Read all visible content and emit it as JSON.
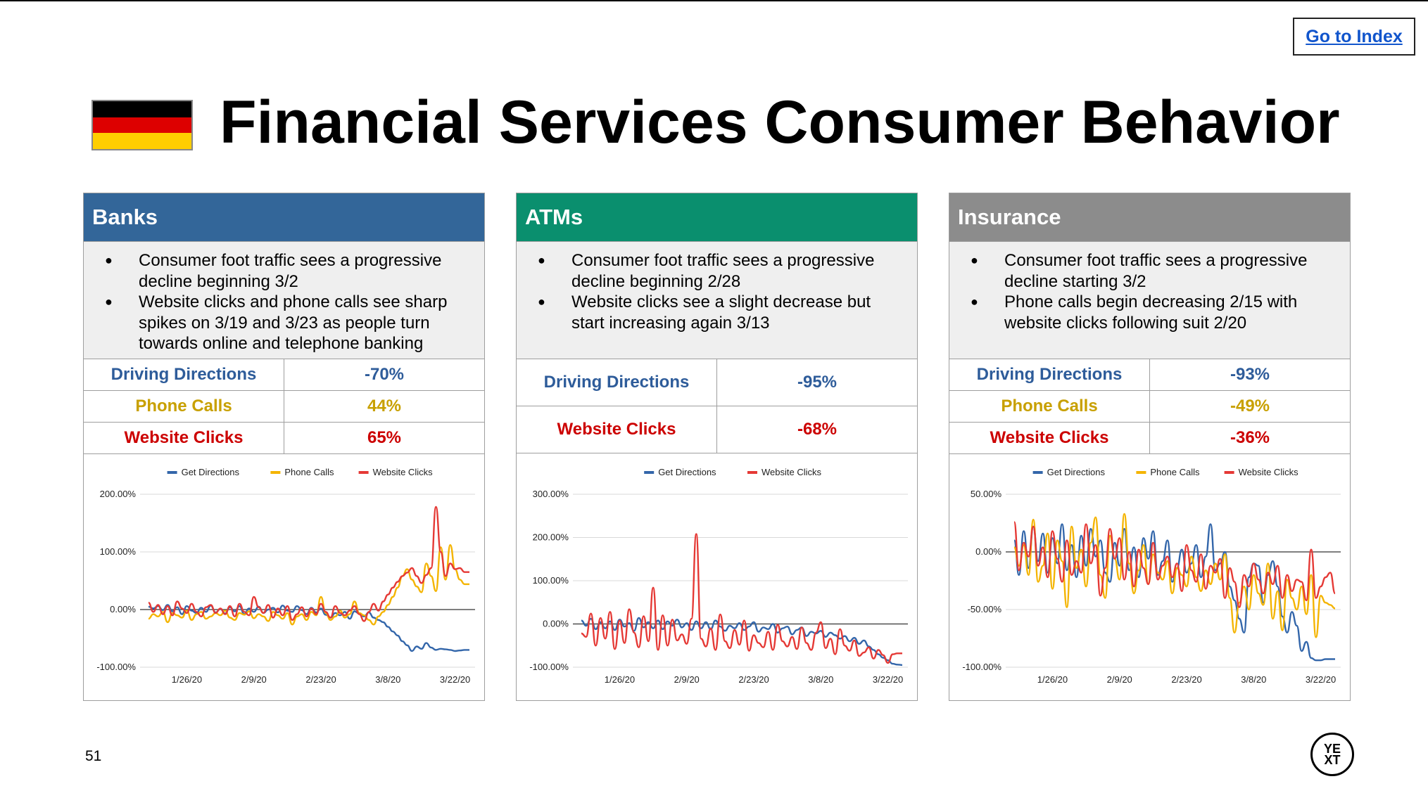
{
  "header": {
    "title": "Financial Services Consumer Behavior",
    "index_link": "Go to Index",
    "flag_colors": [
      "#000000",
      "#dd0000",
      "#ffce00"
    ]
  },
  "footer": {
    "page_number": "51",
    "logo_top": "YE",
    "logo_bottom": "XT"
  },
  "colors": {
    "directions": "#2e5c9a",
    "phone": "#c8a000",
    "website": "#cc0000",
    "chart_directions": "#3366aa",
    "chart_phone": "#f4b400",
    "chart_website": "#e53935"
  },
  "cards": [
    {
      "title": "Banks",
      "color": "#336699",
      "bullets": [
        "Consumer foot traffic sees a progressive decline beginning 3/2",
        "Website clicks and phone calls see sharp spikes on 3/19 and 3/23 as people turn towards online and telephone banking"
      ],
      "metrics": [
        {
          "label": "Driving Directions",
          "value": "-70%",
          "kind": "directions"
        },
        {
          "label": "Phone Calls",
          "value": "44%",
          "kind": "phone"
        },
        {
          "label": "Website Clicks",
          "value": "65%",
          "kind": "website"
        }
      ]
    },
    {
      "title": "ATMs",
      "color": "#0a8f6e",
      "bullets": [
        "Consumer foot traffic sees a progressive decline beginning 2/28",
        "Website clicks see a slight decrease but start increasing again 3/13"
      ],
      "metrics": [
        {
          "label": "Driving Directions",
          "value": "-95%",
          "kind": "directions"
        },
        {
          "label": "Website Clicks",
          "value": "-68%",
          "kind": "website"
        }
      ]
    },
    {
      "title": "Insurance",
      "color": "#8c8c8c",
      "bullets": [
        "Consumer foot traffic sees a progressive decline starting 3/2",
        "Phone calls begin decreasing 2/15 with website clicks following suit 2/20"
      ],
      "metrics": [
        {
          "label": "Driving Directions",
          "value": "-93%",
          "kind": "directions"
        },
        {
          "label": "Phone Calls",
          "value": "-49%",
          "kind": "phone"
        },
        {
          "label": "Website Clicks",
          "value": "-36%",
          "kind": "website"
        }
      ]
    }
  ],
  "chart_data": [
    {
      "type": "line",
      "ylim": [
        -100,
        200
      ],
      "yticks": [
        "200.00%",
        "100.00%",
        "0.00%",
        "-100.00%"
      ],
      "ytick_values": [
        200,
        100,
        0,
        -100
      ],
      "xtick_labels": [
        "1/26/20",
        "2/9/20",
        "2/23/20",
        "3/8/20",
        "3/22/20"
      ],
      "xtick_days": [
        8,
        22,
        36,
        50,
        64
      ],
      "x_start": "1/18/20",
      "x_end": "3/26/20",
      "legend": [
        "Get Directions",
        "Phone Calls",
        "Website Clicks"
      ],
      "series": [
        {
          "name": "Get Directions",
          "kind": "chart_directions",
          "values": [
            5,
            2,
            6,
            -1,
            8,
            -3,
            4,
            -8,
            6,
            -2,
            -6,
            3,
            -4,
            7,
            -5,
            1,
            -7,
            4,
            -3,
            6,
            -8,
            2,
            -4,
            5,
            -6,
            0,
            3,
            -5,
            7,
            -2,
            -4,
            6,
            -1,
            -8,
            3,
            -5,
            2,
            -9,
            -14,
            -6,
            -10,
            -4,
            -16,
            -3,
            -7,
            -12,
            -5,
            -14,
            -18,
            -22,
            -30,
            -38,
            -45,
            -55,
            -62,
            -72,
            -64,
            -68,
            -58,
            -66,
            -70,
            -68,
            -69,
            -70,
            -72,
            -71,
            -70,
            -70
          ]
        },
        {
          "name": "Phone Calls",
          "kind": "chart_phone",
          "values": [
            -16,
            -8,
            -12,
            -4,
            -22,
            -6,
            -10,
            -14,
            -2,
            -18,
            -8,
            -4,
            -16,
            -12,
            -6,
            -10,
            -2,
            -14,
            -18,
            -6,
            -9,
            -3,
            -15,
            -8,
            -12,
            -20,
            -4,
            -10,
            -16,
            -6,
            -26,
            -12,
            -8,
            -18,
            -4,
            -10,
            22,
            -6,
            -18,
            -12,
            -2,
            -14,
            -8,
            14,
            -6,
            -10,
            -18,
            -26,
            -12,
            -4,
            8,
            22,
            38,
            58,
            70,
            52,
            40,
            30,
            80,
            58,
            32,
            108,
            52,
            112,
            70,
            52,
            44,
            44
          ]
        },
        {
          "name": "Website Clicks",
          "kind": "chart_website",
          "values": [
            12,
            -4,
            8,
            -8,
            6,
            -10,
            14,
            2,
            -6,
            10,
            -4,
            -12,
            4,
            8,
            -6,
            2,
            -8,
            6,
            -12,
            10,
            -4,
            -10,
            22,
            4,
            -6,
            8,
            -14,
            2,
            -10,
            6,
            -18,
            -8,
            4,
            -12,
            2,
            -8,
            10,
            -4,
            -14,
            6,
            -6,
            -10,
            -2,
            6,
            -8,
            -20,
            -4,
            10,
            -2,
            14,
            26,
            38,
            48,
            58,
            64,
            72,
            58,
            46,
            60,
            72,
            178,
            100,
            58,
            80,
            70,
            72,
            65,
            65
          ]
        }
      ]
    },
    {
      "type": "line",
      "ylim": [
        -100,
        300
      ],
      "yticks": [
        "300.00%",
        "200.00%",
        "100.00%",
        "0.00%",
        "-100.00%"
      ],
      "ytick_values": [
        300,
        200,
        100,
        0,
        -100
      ],
      "xtick_labels": [
        "1/26/20",
        "2/9/20",
        "2/23/20",
        "3/8/20",
        "3/22/20"
      ],
      "xtick_days": [
        8,
        22,
        36,
        50,
        64
      ],
      "x_start": "1/18/20",
      "x_end": "3/26/20",
      "legend": [
        "Get Directions",
        "Website Clicks"
      ],
      "series": [
        {
          "name": "Get Directions",
          "kind": "chart_directions",
          "values": [
            8,
            -4,
            12,
            -12,
            4,
            -10,
            6,
            -14,
            10,
            -6,
            2,
            -16,
            14,
            -8,
            4,
            -10,
            8,
            -12,
            6,
            -4,
            10,
            -8,
            2,
            -14,
            6,
            -10,
            4,
            -12,
            8,
            -6,
            -16,
            -4,
            -10,
            2,
            -14,
            -6,
            4,
            -18,
            -8,
            -12,
            0,
            -20,
            -10,
            -6,
            -24,
            -14,
            -8,
            -28,
            -18,
            -22,
            -16,
            -30,
            -20,
            -26,
            -34,
            -28,
            -40,
            -32,
            -46,
            -38,
            -52,
            -60,
            -70,
            -78,
            -84,
            -92,
            -94,
            -95
          ]
        },
        {
          "name": "Website Clicks",
          "kind": "chart_website",
          "values": [
            -22,
            -30,
            24,
            -50,
            14,
            -34,
            28,
            -58,
            8,
            -44,
            34,
            -20,
            -54,
            18,
            -40,
            84,
            -60,
            20,
            -50,
            10,
            -38,
            -24,
            -46,
            12,
            208,
            -34,
            -52,
            -10,
            -60,
            22,
            -40,
            -56,
            -14,
            -48,
            8,
            -62,
            -26,
            -44,
            -54,
            -18,
            -60,
            -2,
            -40,
            -52,
            -30,
            -58,
            -8,
            -44,
            -60,
            -20,
            4,
            -56,
            -34,
            -70,
            -12,
            -50,
            -62,
            -38,
            -74,
            -66,
            -54,
            -80,
            -60,
            -72,
            -90,
            -70,
            -68,
            -68
          ]
        }
      ]
    },
    {
      "type": "line",
      "ylim": [
        -100,
        50
      ],
      "yticks": [
        "50.00%",
        "0.00%",
        "-50.00%",
        "-100.00%"
      ],
      "ytick_values": [
        50,
        0,
        -50,
        -100
      ],
      "xtick_labels": [
        "1/26/20",
        "2/9/20",
        "2/23/20",
        "3/8/20",
        "3/22/20"
      ],
      "xtick_days": [
        8,
        22,
        36,
        50,
        64
      ],
      "x_start": "1/18/20",
      "x_end": "3/26/20",
      "legend": [
        "Get Directions",
        "Phone Calls",
        "Website Clicks"
      ],
      "series": [
        {
          "name": "Get Directions",
          "kind": "chart_directions",
          "values": [
            10,
            -20,
            18,
            -14,
            22,
            -8,
            16,
            -18,
            12,
            -10,
            24,
            -16,
            6,
            -22,
            14,
            -12,
            20,
            -4,
            10,
            -18,
            -26,
            8,
            -12,
            20,
            -16,
            4,
            -22,
            12,
            -6,
            18,
            -20,
            -8,
            10,
            -26,
            -14,
            2,
            -18,
            -10,
            6,
            -22,
            -4,
            24,
            -16,
            -10,
            0,
            -30,
            -42,
            -58,
            -70,
            -22,
            -10,
            -12,
            -44,
            -20,
            -8,
            -30,
            -56,
            -70,
            -52,
            -64,
            -86,
            -78,
            -92,
            -94,
            -94,
            -93,
            -93,
            -93
          ]
        },
        {
          "name": "Phone Calls",
          "kind": "chart_phone",
          "values": [
            4,
            -12,
            6,
            -20,
            28,
            -26,
            -12,
            16,
            -32,
            10,
            -8,
            -48,
            22,
            -14,
            2,
            -30,
            8,
            30,
            -20,
            -40,
            14,
            -6,
            -24,
            33,
            -10,
            -36,
            -16,
            6,
            -28,
            -2,
            -18,
            -24,
            -8,
            -36,
            -14,
            -20,
            -30,
            -4,
            -22,
            -34,
            -16,
            -28,
            -10,
            -24,
            -2,
            -40,
            -70,
            -44,
            -30,
            -50,
            -20,
            -36,
            -46,
            -10,
            -58,
            -34,
            -68,
            -24,
            -40,
            -50,
            -30,
            -54,
            -20,
            -74,
            -38,
            -44,
            -46,
            -49
          ]
        },
        {
          "name": "Website Clicks",
          "kind": "chart_website",
          "values": [
            26,
            -16,
            8,
            -4,
            22,
            -12,
            4,
            -22,
            18,
            -6,
            -26,
            10,
            -20,
            -8,
            -18,
            24,
            -10,
            6,
            -38,
            -14,
            20,
            -6,
            12,
            -24,
            0,
            -30,
            2,
            -14,
            -28,
            8,
            -24,
            -12,
            -4,
            -22,
            -10,
            -34,
            6,
            -16,
            -26,
            -2,
            -32,
            -12,
            -18,
            -6,
            -40,
            -14,
            -26,
            -48,
            -20,
            -30,
            -10,
            -24,
            -36,
            -18,
            -28,
            -12,
            -40,
            -20,
            -34,
            -24,
            -26,
            -42,
            2,
            -40,
            -30,
            -22,
            -18,
            -36
          ]
        }
      ]
    }
  ]
}
